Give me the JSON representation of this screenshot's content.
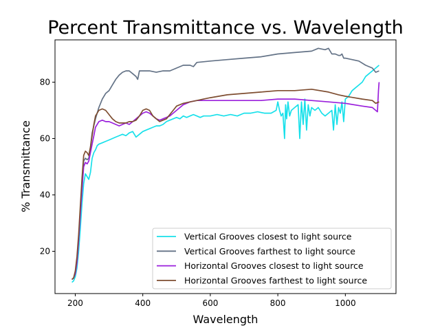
{
  "chart_data": {
    "type": "line",
    "title": "Percent Transmittance vs. Wavelength",
    "xlabel": "Wavelength",
    "ylabel": "% Transmittance",
    "xlim": [
      140,
      1150
    ],
    "ylim": [
      5,
      95
    ],
    "xticks": [
      200,
      400,
      600,
      800,
      1000
    ],
    "yticks": [
      20,
      40,
      60,
      80
    ],
    "grid": false,
    "legend_position": "lower-right",
    "series": [
      {
        "name": "Vertical Grooves closest to light source",
        "color": "#17e0ea",
        "points": [
          [
            190,
            9
          ],
          [
            195,
            9.5
          ],
          [
            200,
            11
          ],
          [
            205,
            14
          ],
          [
            210,
            20
          ],
          [
            215,
            28
          ],
          [
            220,
            37
          ],
          [
            225,
            44
          ],
          [
            230,
            47.5
          ],
          [
            235,
            46.5
          ],
          [
            240,
            45.5
          ],
          [
            245,
            48
          ],
          [
            250,
            53
          ],
          [
            255,
            55
          ],
          [
            260,
            56
          ],
          [
            265,
            57.5
          ],
          [
            270,
            58
          ],
          [
            280,
            58.5
          ],
          [
            290,
            59
          ],
          [
            300,
            59.5
          ],
          [
            310,
            60
          ],
          [
            320,
            60.5
          ],
          [
            330,
            61
          ],
          [
            340,
            61.5
          ],
          [
            350,
            61
          ],
          [
            360,
            62
          ],
          [
            370,
            62.5
          ],
          [
            380,
            60.5
          ],
          [
            390,
            61.5
          ],
          [
            400,
            62.5
          ],
          [
            410,
            63
          ],
          [
            420,
            63.5
          ],
          [
            430,
            64
          ],
          [
            440,
            64.5
          ],
          [
            450,
            64.5
          ],
          [
            460,
            65
          ],
          [
            470,
            66
          ],
          [
            480,
            66.5
          ],
          [
            490,
            67
          ],
          [
            500,
            67.5
          ],
          [
            510,
            67
          ],
          [
            520,
            68
          ],
          [
            530,
            67.5
          ],
          [
            540,
            68
          ],
          [
            550,
            68.5
          ],
          [
            560,
            68
          ],
          [
            570,
            67.5
          ],
          [
            580,
            68
          ],
          [
            600,
            68
          ],
          [
            620,
            68.5
          ],
          [
            640,
            68
          ],
          [
            660,
            68.5
          ],
          [
            680,
            68
          ],
          [
            700,
            69
          ],
          [
            720,
            69
          ],
          [
            740,
            69.5
          ],
          [
            760,
            69
          ],
          [
            780,
            69
          ],
          [
            795,
            70
          ],
          [
            800,
            73
          ],
          [
            805,
            70
          ],
          [
            810,
            68
          ],
          [
            815,
            69
          ],
          [
            820,
            60
          ],
          [
            823,
            72
          ],
          [
            826,
            67
          ],
          [
            830,
            73
          ],
          [
            835,
            68
          ],
          [
            840,
            70
          ],
          [
            850,
            71
          ],
          [
            860,
            72
          ],
          [
            865,
            60
          ],
          [
            870,
            73
          ],
          [
            875,
            65
          ],
          [
            880,
            74
          ],
          [
            885,
            63
          ],
          [
            890,
            72
          ],
          [
            895,
            68
          ],
          [
            900,
            71
          ],
          [
            910,
            70
          ],
          [
            920,
            71
          ],
          [
            930,
            69
          ],
          [
            940,
            68
          ],
          [
            950,
            69
          ],
          [
            960,
            70
          ],
          [
            965,
            63
          ],
          [
            970,
            72
          ],
          [
            975,
            65
          ],
          [
            980,
            71
          ],
          [
            985,
            69
          ],
          [
            990,
            73
          ],
          [
            995,
            66
          ],
          [
            1000,
            74
          ],
          [
            1010,
            75
          ],
          [
            1020,
            77
          ],
          [
            1030,
            78
          ],
          [
            1040,
            79
          ],
          [
            1050,
            80
          ],
          [
            1060,
            82
          ],
          [
            1070,
            83
          ],
          [
            1080,
            84
          ],
          [
            1090,
            85
          ],
          [
            1100,
            86
          ]
        ]
      },
      {
        "name": "Vertical Grooves farthest to light source",
        "color": "#637286",
        "points": [
          [
            190,
            10
          ],
          [
            195,
            10.5
          ],
          [
            200,
            12
          ],
          [
            205,
            16
          ],
          [
            210,
            24
          ],
          [
            215,
            34
          ],
          [
            220,
            44
          ],
          [
            225,
            52
          ],
          [
            230,
            53
          ],
          [
            235,
            52.5
          ],
          [
            240,
            53
          ],
          [
            245,
            57
          ],
          [
            250,
            62
          ],
          [
            260,
            67
          ],
          [
            270,
            71
          ],
          [
            280,
            74
          ],
          [
            290,
            76
          ],
          [
            300,
            77
          ],
          [
            310,
            79
          ],
          [
            320,
            81
          ],
          [
            330,
            82.5
          ],
          [
            340,
            83.5
          ],
          [
            350,
            84
          ],
          [
            360,
            84
          ],
          [
            370,
            83
          ],
          [
            380,
            82
          ],
          [
            385,
            81
          ],
          [
            390,
            84
          ],
          [
            400,
            84
          ],
          [
            420,
            84
          ],
          [
            440,
            83.5
          ],
          [
            460,
            84
          ],
          [
            480,
            84
          ],
          [
            500,
            85
          ],
          [
            520,
            86
          ],
          [
            540,
            86
          ],
          [
            550,
            85.5
          ],
          [
            560,
            87
          ],
          [
            600,
            87.5
          ],
          [
            650,
            88
          ],
          [
            700,
            88.5
          ],
          [
            750,
            89
          ],
          [
            800,
            90
          ],
          [
            850,
            90.5
          ],
          [
            900,
            91
          ],
          [
            920,
            92
          ],
          [
            940,
            91.5
          ],
          [
            950,
            92
          ],
          [
            960,
            90
          ],
          [
            970,
            90
          ],
          [
            980,
            89.5
          ],
          [
            985,
            89.5
          ],
          [
            990,
            90
          ],
          [
            995,
            88.5
          ],
          [
            1000,
            88.5
          ],
          [
            1020,
            88
          ],
          [
            1040,
            87.5
          ],
          [
            1060,
            86
          ],
          [
            1080,
            85
          ],
          [
            1090,
            83.5
          ],
          [
            1100,
            84
          ]
        ]
      },
      {
        "name": "Horizontal Grooves closest to light source",
        "color": "#9a1fdc",
        "points": [
          [
            190,
            10
          ],
          [
            195,
            10.5
          ],
          [
            200,
            12
          ],
          [
            205,
            16
          ],
          [
            210,
            24
          ],
          [
            215,
            33
          ],
          [
            220,
            42
          ],
          [
            225,
            50
          ],
          [
            230,
            51.5
          ],
          [
            235,
            51
          ],
          [
            240,
            52
          ],
          [
            245,
            55
          ],
          [
            250,
            58
          ],
          [
            255,
            61
          ],
          [
            260,
            64
          ],
          [
            270,
            66
          ],
          [
            280,
            66.5
          ],
          [
            290,
            66
          ],
          [
            300,
            66
          ],
          [
            310,
            65.5
          ],
          [
            320,
            65
          ],
          [
            330,
            64.5
          ],
          [
            340,
            65
          ],
          [
            350,
            65.5
          ],
          [
            360,
            65
          ],
          [
            370,
            66
          ],
          [
            380,
            67
          ],
          [
            390,
            68
          ],
          [
            400,
            69
          ],
          [
            410,
            69.5
          ],
          [
            420,
            69
          ],
          [
            430,
            68
          ],
          [
            440,
            67
          ],
          [
            450,
            66.5
          ],
          [
            460,
            67
          ],
          [
            470,
            67.5
          ],
          [
            480,
            68
          ],
          [
            490,
            69
          ],
          [
            500,
            70
          ],
          [
            520,
            72
          ],
          [
            540,
            73
          ],
          [
            560,
            73.5
          ],
          [
            600,
            73.5
          ],
          [
            650,
            73.5
          ],
          [
            700,
            73.5
          ],
          [
            750,
            73.5
          ],
          [
            800,
            74
          ],
          [
            850,
            74
          ],
          [
            900,
            73.5
          ],
          [
            950,
            73
          ],
          [
            1000,
            72.5
          ],
          [
            1050,
            71.5
          ],
          [
            1080,
            71
          ],
          [
            1090,
            70
          ],
          [
            1095,
            69.5
          ],
          [
            1098,
            77
          ],
          [
            1100,
            80
          ]
        ]
      },
      {
        "name": "Horizontal Grooves farthest to light source",
        "color": "#7e4d30",
        "points": [
          [
            190,
            10
          ],
          [
            195,
            10.5
          ],
          [
            200,
            13
          ],
          [
            205,
            18
          ],
          [
            210,
            26
          ],
          [
            215,
            36
          ],
          [
            220,
            46
          ],
          [
            225,
            54
          ],
          [
            230,
            55.5
          ],
          [
            235,
            55
          ],
          [
            240,
            54
          ],
          [
            245,
            57
          ],
          [
            250,
            61
          ],
          [
            255,
            65
          ],
          [
            260,
            68
          ],
          [
            270,
            70
          ],
          [
            280,
            70.5
          ],
          [
            290,
            70
          ],
          [
            300,
            68.5
          ],
          [
            310,
            67
          ],
          [
            320,
            66
          ],
          [
            330,
            65.5
          ],
          [
            340,
            65.5
          ],
          [
            350,
            65.5
          ],
          [
            360,
            66
          ],
          [
            370,
            66
          ],
          [
            380,
            66.5
          ],
          [
            390,
            68
          ],
          [
            400,
            70
          ],
          [
            410,
            70.5
          ],
          [
            420,
            70
          ],
          [
            430,
            68
          ],
          [
            440,
            67
          ],
          [
            450,
            66
          ],
          [
            460,
            66.5
          ],
          [
            470,
            67
          ],
          [
            480,
            68.5
          ],
          [
            490,
            70
          ],
          [
            500,
            71.5
          ],
          [
            520,
            72.5
          ],
          [
            540,
            73
          ],
          [
            560,
            73.5
          ],
          [
            580,
            74
          ],
          [
            600,
            74.5
          ],
          [
            650,
            75.5
          ],
          [
            700,
            76
          ],
          [
            750,
            76.5
          ],
          [
            800,
            77
          ],
          [
            850,
            77
          ],
          [
            900,
            77.5
          ],
          [
            950,
            76.5
          ],
          [
            980,
            75.5
          ],
          [
            1000,
            75
          ],
          [
            1050,
            74
          ],
          [
            1080,
            73.5
          ],
          [
            1090,
            72.5
          ],
          [
            1100,
            73
          ]
        ]
      }
    ]
  }
}
